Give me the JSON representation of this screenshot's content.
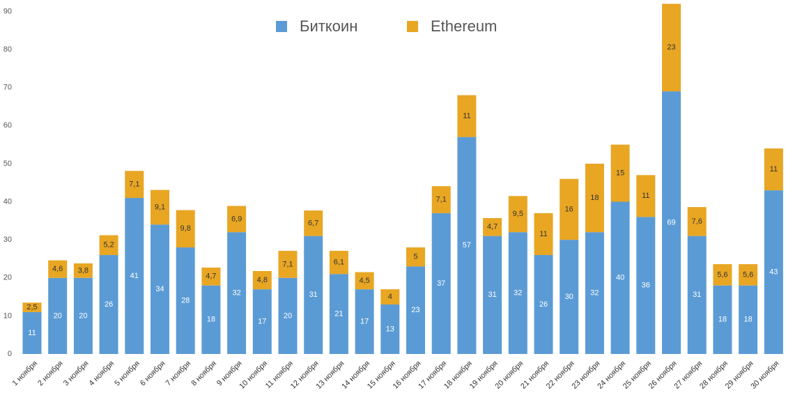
{
  "chart_data": {
    "type": "stacked-bar",
    "categories": [
      "1 ноября",
      "2 ноября",
      "3 ноября",
      "4 ноября",
      "5 ноября",
      "6 ноября",
      "7 ноября",
      "8 ноября",
      "9 ноября",
      "10 ноября",
      "11 ноября",
      "12 ноября",
      "13 ноября",
      "14 ноября",
      "15 ноября",
      "16 ноября",
      "17 ноября",
      "18 ноября",
      "19 ноября",
      "20 ноября",
      "21 ноября",
      "22 ноября",
      "23 ноября",
      "24 ноября",
      "25 ноября",
      "26 ноября",
      "27 ноября",
      "28 ноября",
      "29 ноября",
      "30 ноября"
    ],
    "series": [
      {
        "name": "Биткоин",
        "color": "#5b9bd5",
        "label_color": "#ffffff",
        "values": [
          11,
          20,
          20,
          26,
          41,
          34,
          28,
          18,
          32,
          17,
          20,
          31,
          21,
          17,
          13,
          23,
          37,
          57,
          31,
          32,
          26,
          30,
          32,
          40,
          36,
          69,
          31,
          18,
          18,
          43
        ]
      },
      {
        "name": "Ethereum",
        "color": "#e8a623",
        "label_color": "#333333",
        "values": [
          2.5,
          4.6,
          3.8,
          5.2,
          7.1,
          9.1,
          9.8,
          4.7,
          6.9,
          4.8,
          7.1,
          6.7,
          6.1,
          4.5,
          4,
          5,
          7.1,
          11,
          4.7,
          9.5,
          11,
          16,
          18,
          15,
          11,
          23,
          7.6,
          5.6,
          5.6,
          11
        ],
        "value_labels": [
          "2,5",
          "4,6",
          "3,8",
          "5,2",
          "7,1",
          "9,1",
          "9,8",
          "4,7",
          "6,9",
          "4,8",
          "7,1",
          "6,7",
          "6,1",
          "4,5",
          "4",
          "5",
          "7,1",
          "11",
          "4,7",
          "9,5",
          "11",
          "16",
          "18",
          "15",
          "11",
          "23",
          "7,6",
          "5,6",
          "5,6",
          "11"
        ]
      }
    ],
    "ylim": [
      0,
      93
    ],
    "yticks": [
      0,
      10,
      20,
      30,
      40,
      50,
      60,
      70,
      80,
      90
    ],
    "legend": "top"
  }
}
